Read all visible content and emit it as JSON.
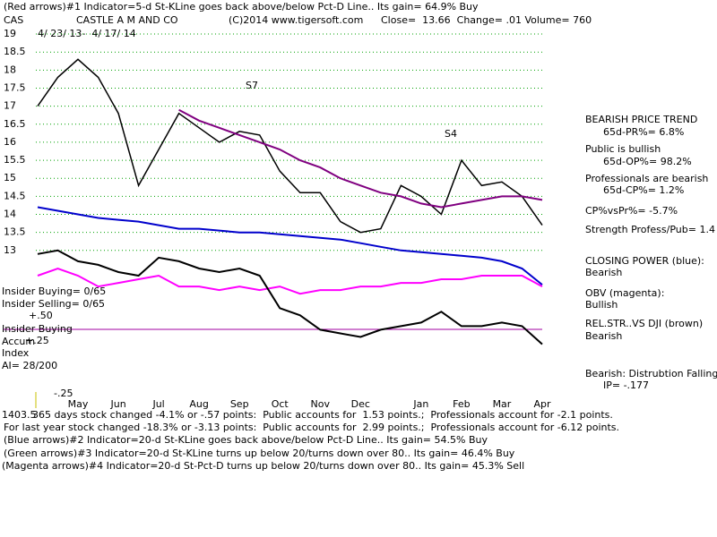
{
  "chart_data": {
    "type": "line",
    "title": "(Red arrows)#1 Indicator=5-d St-KLine goes back above/below Pct-D Line.. Its gain= 64.9% Buy",
    "ticker": "CAS",
    "company": "CASTLE A M AND CO",
    "source": "(C)2014 www.tigersoft.com",
    "quote": "Close=  13.66  Change= .01 Volume= 760",
    "date_range": "4/ 23/ 13-  4/ 17/ 14",
    "categories": [
      null,
      null,
      "May",
      null,
      "Jun",
      null,
      "Jul",
      null,
      "Aug",
      null,
      "Sep",
      null,
      "Oct",
      null,
      "Nov",
      null,
      "Dec",
      null,
      null,
      "Jan",
      null,
      "Feb",
      null,
      "Mar",
      null,
      "Apr"
    ],
    "series": [
      {
        "color": "#000000",
        "values": [
          17.0,
          17.8,
          18.3,
          17.8,
          16.8,
          14.8,
          15.8,
          16.8,
          16.4,
          16.0,
          16.3,
          16.2,
          15.2,
          14.6,
          14.6,
          13.8,
          13.5,
          13.6,
          14.8,
          14.5,
          14.0,
          15.5,
          14.8,
          14.9,
          14.5,
          13.7
        ]
      },
      {
        "color": "#800080",
        "values": [
          null,
          null,
          null,
          null,
          null,
          null,
          null,
          16.9,
          16.6,
          16.4,
          16.2,
          16.0,
          15.8,
          15.5,
          15.3,
          15.0,
          14.8,
          14.6,
          14.5,
          14.3,
          14.2,
          14.3,
          14.4,
          14.5,
          14.5,
          14.4
        ]
      },
      {
        "color": "#0000cc",
        "values": [
          14.2,
          14.1,
          14.0,
          13.9,
          13.85,
          13.8,
          13.7,
          13.6,
          13.6,
          13.55,
          13.5,
          13.5,
          13.45,
          13.4,
          13.35,
          13.3,
          13.2,
          13.1,
          13.0,
          12.95,
          12.9,
          12.85,
          12.8,
          12.7,
          12.5,
          12.05
        ]
      },
      {
        "color": "#ff00ff",
        "values": [
          12.3,
          12.5,
          12.3,
          12.0,
          12.1,
          12.2,
          12.3,
          12.0,
          12.0,
          11.9,
          12.0,
          11.9,
          12.0,
          11.8,
          11.9,
          11.9,
          12.0,
          12.0,
          12.1,
          12.1,
          12.2,
          12.2,
          12.3,
          12.3,
          12.3,
          12.0
        ]
      },
      {
        "color": "#000000",
        "values": [
          12.9,
          13.0,
          12.7,
          12.6,
          12.4,
          12.3,
          12.8,
          12.7,
          12.5,
          12.4,
          12.5,
          12.3,
          11.4,
          11.2,
          10.8,
          10.7,
          10.6,
          10.8,
          10.9,
          11.0,
          11.3,
          10.9,
          10.9,
          11.0,
          10.9,
          10.4
        ]
      }
    ],
    "ylim": [
      8.9,
      19.2
    ],
    "yticks": [
      19,
      18.5,
      18,
      17.5,
      17,
      16.5,
      16,
      15.5,
      15,
      14.5,
      14,
      13.5,
      13
    ],
    "grid": true,
    "grid_color": "#00a000",
    "annotations": [
      "S7",
      "S4"
    ]
  },
  "side_notes": [
    "BEARISH PRICE TREND",
    "65d-PR%= 6.8%",
    "Public is bullish",
    "65d-OP%= 98.2%",
    "Professionals are bearish",
    "65d-CP%= 1.2%",
    "CP%vsPr%= -5.7%",
    "Strength Profess/Pub= 1.4",
    "CLOSING POWER (blue):",
    "Bearish",
    "OBV (magenta):",
    "Bullish",
    "REL.STR..VS DJI (brown)",
    "Bearish",
    "Bearish: Distrubtion Falling",
    "IP= -.177"
  ],
  "panel_labels": [
    "Insider Buying= 0/65",
    "Insider Selling= 0/65",
    "+.50",
    "Insider Buying",
    "Accum",
    "+.25",
    "Index",
    "AI= 28/200",
    "-.25"
  ],
  "footer": [
    "1403.5",
    "365 days stock changed -4.1% or -.57 points:  Public accounts for  1.53 points.;  Professionals account for -2.1 points.",
    "For last year stock changed -18.3% or -3.13 points:  Public accounts for  2.99 points.;  Professionals account for -6.12 points.",
    "(Blue arrows)#2 Indicator=20-d St-KLine goes back above/below Pct-D Line.. Its gain= 54.5% Buy",
    "(Green arrows)#3 Indicator=20-d St-KLine turns up below 20/turns down over 80.. Its gain= 46.4% Buy",
    "(Magenta arrows)#4 Indicator=20-d St-Pct-D turns up below 20/turns down over 80.. Its gain= 45.3% Sell"
  ]
}
